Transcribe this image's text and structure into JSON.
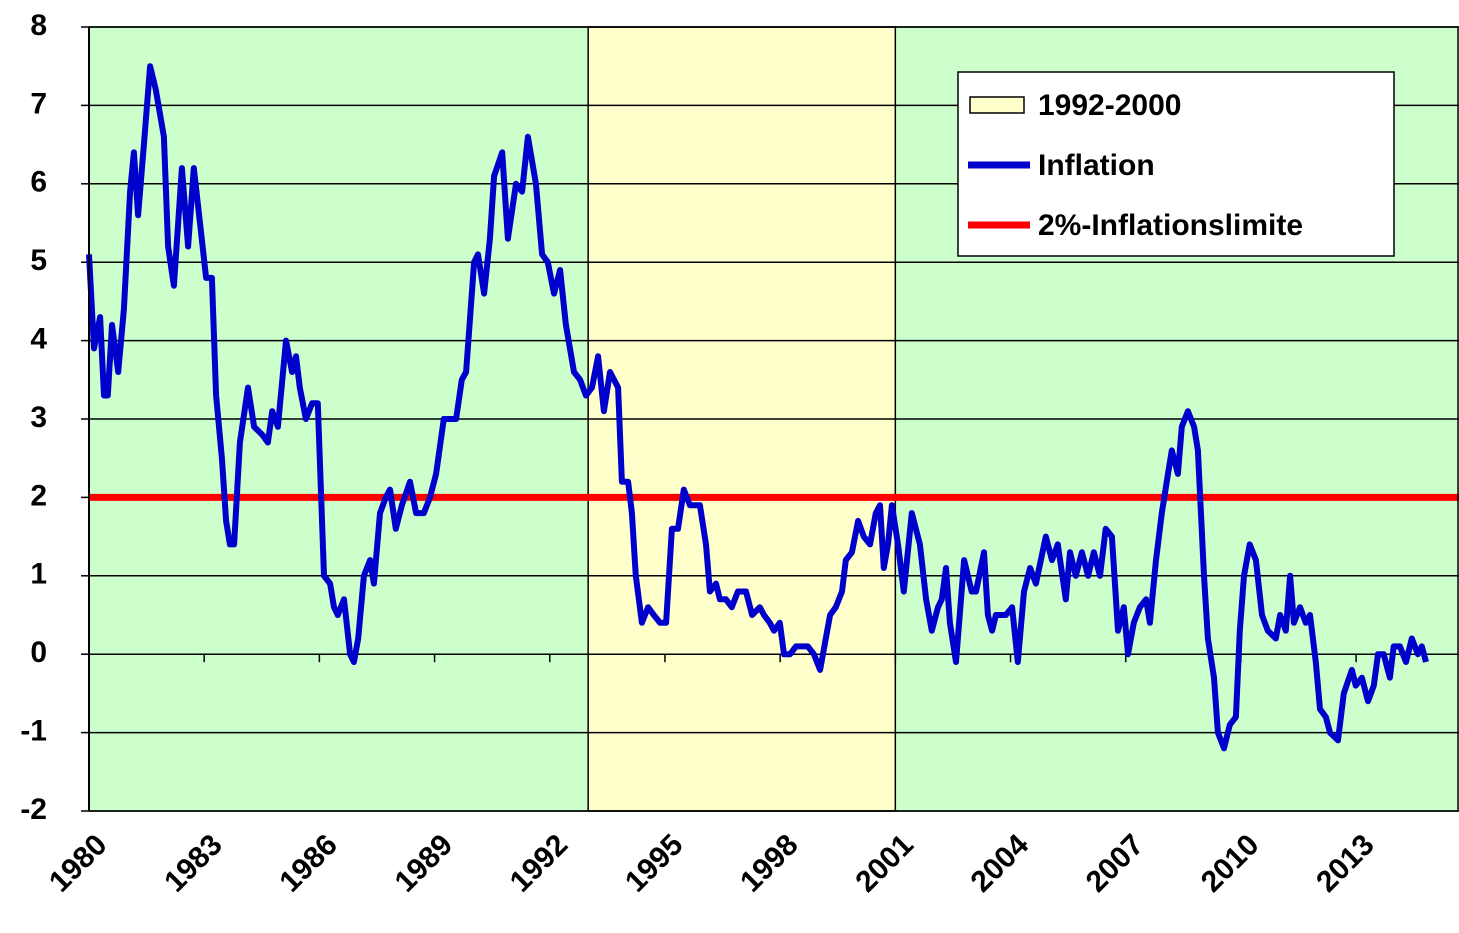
{
  "chart_data": {
    "type": "line",
    "series": [
      {
        "name": "Inflation",
        "color": "#0000cc",
        "x": [
          1980,
          1980.13,
          1980.29,
          1980.39,
          1980.49,
          1980.6,
          1980.76,
          1980.91,
          1981.07,
          1981.17,
          1981.28,
          1981.43,
          1981.59,
          1981.74,
          1981.95,
          1982.06,
          1982.21,
          1982.42,
          1982.58,
          1982.73,
          1982.89,
          1983.05,
          1983.2,
          1983.31,
          1983.46,
          1983.57,
          1983.67,
          1983.78,
          1983.93,
          1984.14,
          1984.3,
          1984.51,
          1984.66,
          1984.77,
          1984.92,
          1985.13,
          1985.29,
          1985.39,
          1985.49,
          1985.65,
          1985.81,
          1985.96,
          1986.12,
          1986.28,
          1986.38,
          1986.48,
          1986.64,
          1986.8,
          1986.9,
          1987.01,
          1987.16,
          1987.32,
          1987.42,
          1987.58,
          1987.73,
          1987.84,
          1987.99,
          1988.15,
          1988.36,
          1988.52,
          1988.72,
          1988.88,
          1989.04,
          1989.24,
          1989.56,
          1989.71,
          1989.82,
          1990.03,
          1990.13,
          1990.29,
          1990.44,
          1990.55,
          1990.76,
          1990.91,
          1991.12,
          1991.28,
          1991.43,
          1991.64,
          1991.8,
          1991.95,
          1992.11,
          1992.27,
          1992.42,
          1992.63,
          1992.79,
          1992.94,
          1993.1,
          1993.26,
          1993.41,
          1993.57,
          1993.78,
          1993.88,
          1994.04,
          1994.14,
          1994.24,
          1994.4,
          1994.56,
          1994.71,
          1994.87,
          1995.03,
          1995.18,
          1995.34,
          1995.49,
          1995.65,
          1995.91,
          1996.07,
          1996.17,
          1996.33,
          1996.43,
          1996.59,
          1996.74,
          1996.9,
          1997.11,
          1997.27,
          1997.47,
          1997.58,
          1997.73,
          1997.84,
          1997.99,
          1998.1,
          1998.26,
          1998.41,
          1998.72,
          1998.88,
          1999.04,
          1999.19,
          1999.3,
          1999.45,
          1999.61,
          1999.71,
          1999.87,
          2000.03,
          2000.18,
          2000.34,
          2000.49,
          2000.6,
          2000.7,
          2000.81,
          2000.91,
          2001.07,
          2001.22,
          2001.43,
          2001.64,
          2001.8,
          2001.95,
          2002.11,
          2002.21,
          2002.32,
          2002.42,
          2002.58,
          2002.79,
          2002.99,
          2003.1,
          2003.31,
          2003.41,
          2003.52,
          2003.62,
          2003.88,
          2004.04,
          2004.19,
          2004.35,
          2004.51,
          2004.66,
          2004.92,
          2005.08,
          2005.23,
          2005.44,
          2005.55,
          2005.7,
          2005.86,
          2006.02,
          2006.17,
          2006.33,
          2006.48,
          2006.64,
          2006.8,
          2006.95,
          2007.06,
          2007.21,
          2007.37,
          2007.53,
          2007.63,
          2007.79,
          2007.94,
          2008.1,
          2008.2,
          2008.36,
          2008.46,
          2008.62,
          2008.78,
          2008.88,
          2009.04,
          2009.14,
          2009.3,
          2009.4,
          2009.56,
          2009.71,
          2009.87,
          2009.97,
          2010.08,
          2010.23,
          2010.39,
          2010.55,
          2010.7,
          2010.91,
          2011.02,
          2011.17,
          2011.28,
          2011.38,
          2011.54,
          2011.69,
          2011.8,
          2011.95,
          2012.06,
          2012.21,
          2012.32,
          2012.53,
          2012.68,
          2012.89,
          2012.99,
          2013.15,
          2013.31,
          2013.46,
          2013.57,
          2013.72,
          2013.88,
          2013.98,
          2014.14,
          2014.3,
          2014.45,
          2014.61,
          2014.71,
          2014.82
        ],
        "values": [
          5.1,
          3.9,
          4.3,
          3.3,
          3.3,
          4.2,
          3.6,
          4.4,
          5.9,
          6.4,
          5.6,
          6.5,
          7.5,
          7.2,
          6.6,
          5.2,
          4.7,
          6.2,
          5.2,
          6.2,
          5.5,
          4.8,
          4.8,
          3.3,
          2.5,
          1.7,
          1.4,
          1.4,
          2.7,
          3.4,
          2.9,
          2.8,
          2.7,
          3.1,
          2.9,
          4.0,
          3.6,
          3.8,
          3.4,
          3.0,
          3.2,
          3.2,
          1.0,
          0.9,
          0.6,
          0.5,
          0.7,
          0.0,
          -0.1,
          0.2,
          1.0,
          1.2,
          0.9,
          1.8,
          2.0,
          2.1,
          1.6,
          1.9,
          2.2,
          1.8,
          1.8,
          2.0,
          2.3,
          3.0,
          3.0,
          3.5,
          3.6,
          5.0,
          5.1,
          4.6,
          5.3,
          6.1,
          6.4,
          5.3,
          6.0,
          5.9,
          6.6,
          6.0,
          5.1,
          5.0,
          4.6,
          4.9,
          4.2,
          3.6,
          3.5,
          3.3,
          3.4,
          3.8,
          3.1,
          3.6,
          3.4,
          2.2,
          2.2,
          1.8,
          1.0,
          0.4,
          0.6,
          0.5,
          0.4,
          0.4,
          1.6,
          1.6,
          2.1,
          1.9,
          1.9,
          1.4,
          0.8,
          0.9,
          0.7,
          0.7,
          0.6,
          0.8,
          0.8,
          0.5,
          0.6,
          0.5,
          0.4,
          0.3,
          0.4,
          0.0,
          0.0,
          0.1,
          0.1,
          0.0,
          -0.2,
          0.2,
          0.5,
          0.6,
          0.8,
          1.2,
          1.3,
          1.7,
          1.5,
          1.4,
          1.8,
          1.9,
          1.1,
          1.4,
          1.9,
          1.4,
          0.8,
          1.8,
          1.4,
          0.7,
          0.3,
          0.6,
          0.7,
          1.1,
          0.4,
          -0.1,
          1.2,
          0.8,
          0.8,
          1.3,
          0.5,
          0.3,
          0.5,
          0.5,
          0.6,
          -0.1,
          0.8,
          1.1,
          0.9,
          1.5,
          1.2,
          1.4,
          0.7,
          1.3,
          1.0,
          1.3,
          1.0,
          1.3,
          1.0,
          1.6,
          1.5,
          0.3,
          0.6,
          0.0,
          0.4,
          0.6,
          0.7,
          0.4,
          1.2,
          1.8,
          2.3,
          2.6,
          2.3,
          2.9,
          3.1,
          2.9,
          2.6,
          1.0,
          0.2,
          -0.3,
          -1.0,
          -1.2,
          -0.9,
          -0.8,
          0.3,
          1.0,
          1.4,
          1.2,
          0.5,
          0.3,
          0.2,
          0.5,
          0.3,
          1.0,
          0.4,
          0.6,
          0.4,
          0.5,
          -0.1,
          -0.7,
          -0.8,
          -1.0,
          -1.1,
          -0.5,
          -0.2,
          -0.4,
          -0.3,
          -0.6,
          -0.4,
          0.0,
          0.0,
          -0.3,
          0.1,
          0.1,
          -0.1,
          0.2,
          0.0,
          0.1,
          -0.1
        ]
      }
    ],
    "shaded_ranges": [
      {
        "name": "1992-2000",
        "x": [
          1993,
          2001
        ],
        "color": "#ffffcc"
      }
    ],
    "reference_lines": [
      {
        "name": "2%-Inflationslimite",
        "value": 2,
        "color": "#ff0000"
      }
    ],
    "background": "#ccffcc",
    "xlim": [
      1980,
      2015.68
    ],
    "xticks": [
      1980,
      1983,
      1986,
      1989,
      1992,
      1995,
      1998,
      2001,
      2004,
      2007,
      2010,
      2013
    ],
    "ylim": [
      -2,
      8
    ],
    "yticks": [
      -2,
      -1,
      0,
      1,
      2,
      3,
      4,
      5,
      6,
      7,
      8
    ],
    "grid": true,
    "legend": "upper right"
  }
}
